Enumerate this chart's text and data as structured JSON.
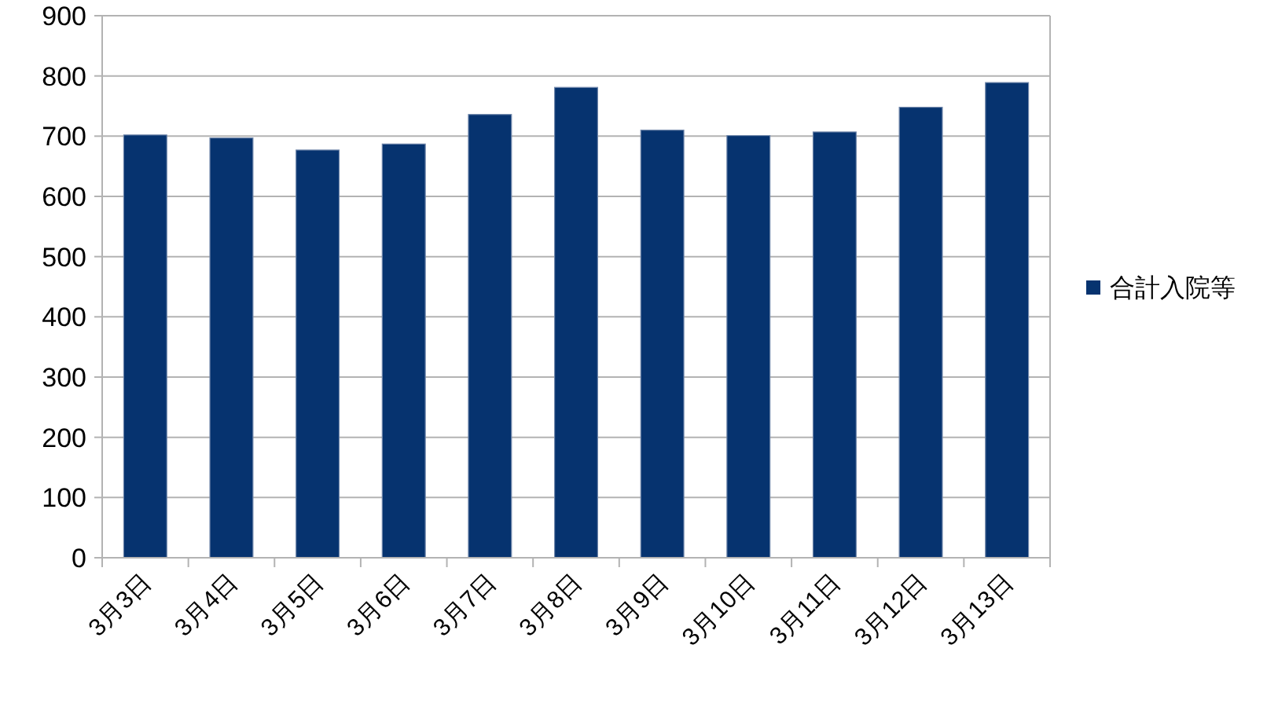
{
  "chart_data": {
    "type": "bar",
    "categories": [
      "3月3日",
      "3月4日",
      "3月5日",
      "3月6日",
      "3月7日",
      "3月8日",
      "3月9日",
      "3月10日",
      "3月11日",
      "3月12日",
      "3月13日"
    ],
    "series": [
      {
        "name": "合計入院等",
        "color": "#06336f",
        "values": [
          702,
          697,
          677,
          687,
          736,
          781,
          710,
          701,
          707,
          748,
          789
        ]
      }
    ],
    "ylim": [
      0,
      900
    ],
    "yticks": [
      0,
      100,
      200,
      300,
      400,
      500,
      600,
      700,
      800,
      900
    ],
    "grid": "y",
    "legend": "right"
  }
}
